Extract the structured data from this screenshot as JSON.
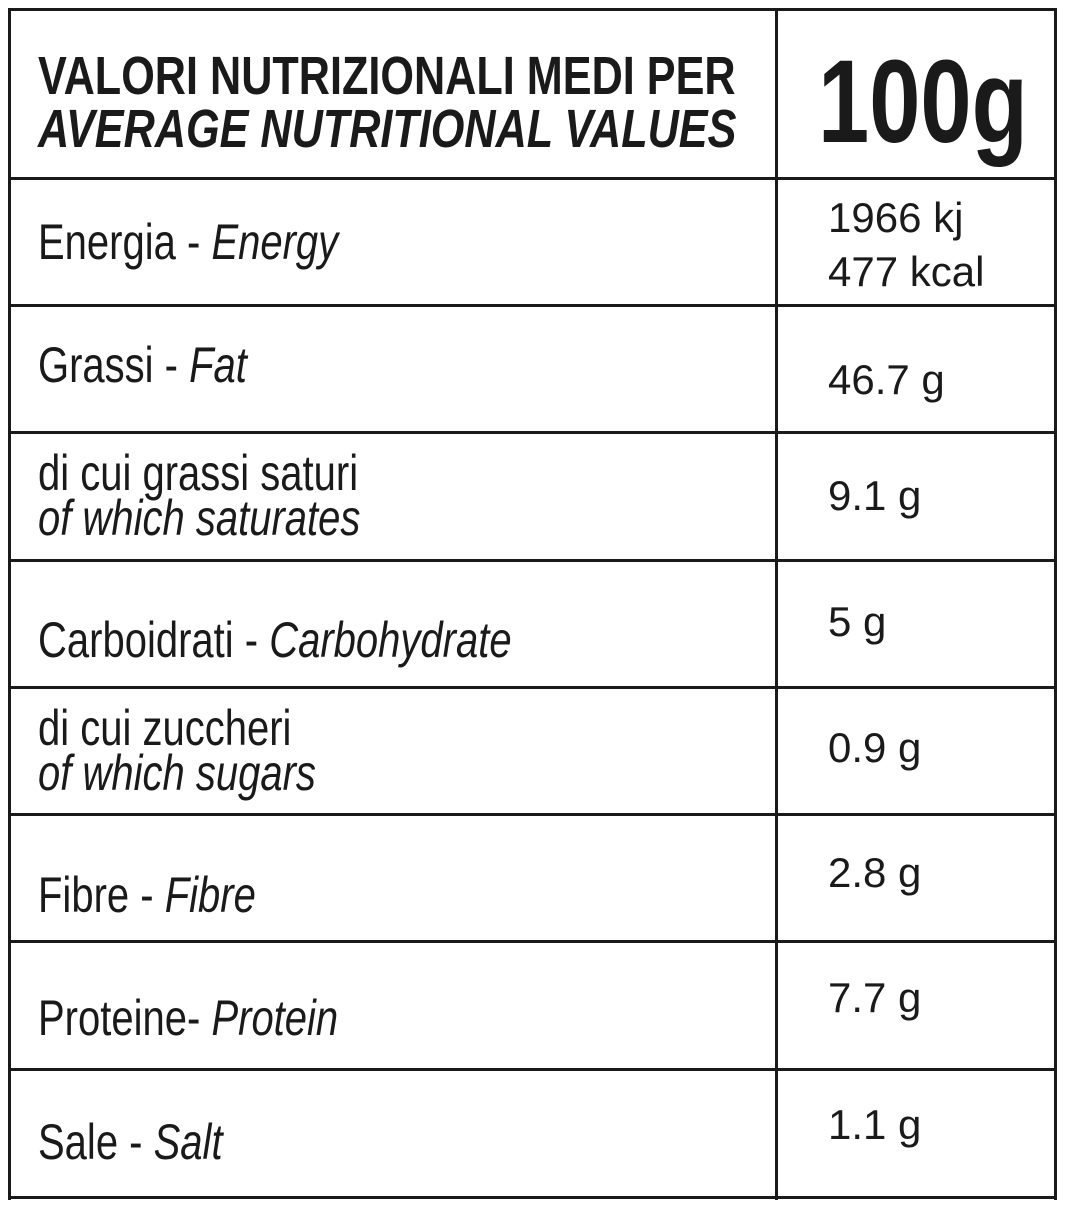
{
  "header": {
    "title_it": "VALORI NUTRIZIONALI MEDI PER",
    "title_en": "AVERAGE NUTRITIONAL VALUES",
    "amount": "100g"
  },
  "rows": [
    {
      "it": "Energia -",
      "en": "Energy",
      "values": [
        "1966 kj",
        "477 kcal"
      ]
    },
    {
      "it": "Grassi -",
      "en": "Fat",
      "values": [
        "46.7 g"
      ]
    },
    {
      "it": "di cui grassi saturi",
      "en": "of which saturates",
      "values": [
        "9.1 g"
      ]
    },
    {
      "it": "Carboidrati -",
      "en": "Carbohydrate",
      "values": [
        "5 g"
      ]
    },
    {
      "it": "di cui zuccheri",
      "en": "of which sugars",
      "values": [
        "0.9 g"
      ]
    },
    {
      "it": "Fibre -",
      "en": "Fibre",
      "values": [
        "2.8 g"
      ]
    },
    {
      "it": "Proteine-",
      "en": "Protein",
      "values": [
        "7.7 g"
      ]
    },
    {
      "it": "Sale -",
      "en": "Salt",
      "values": [
        "1.1 g"
      ]
    }
  ]
}
